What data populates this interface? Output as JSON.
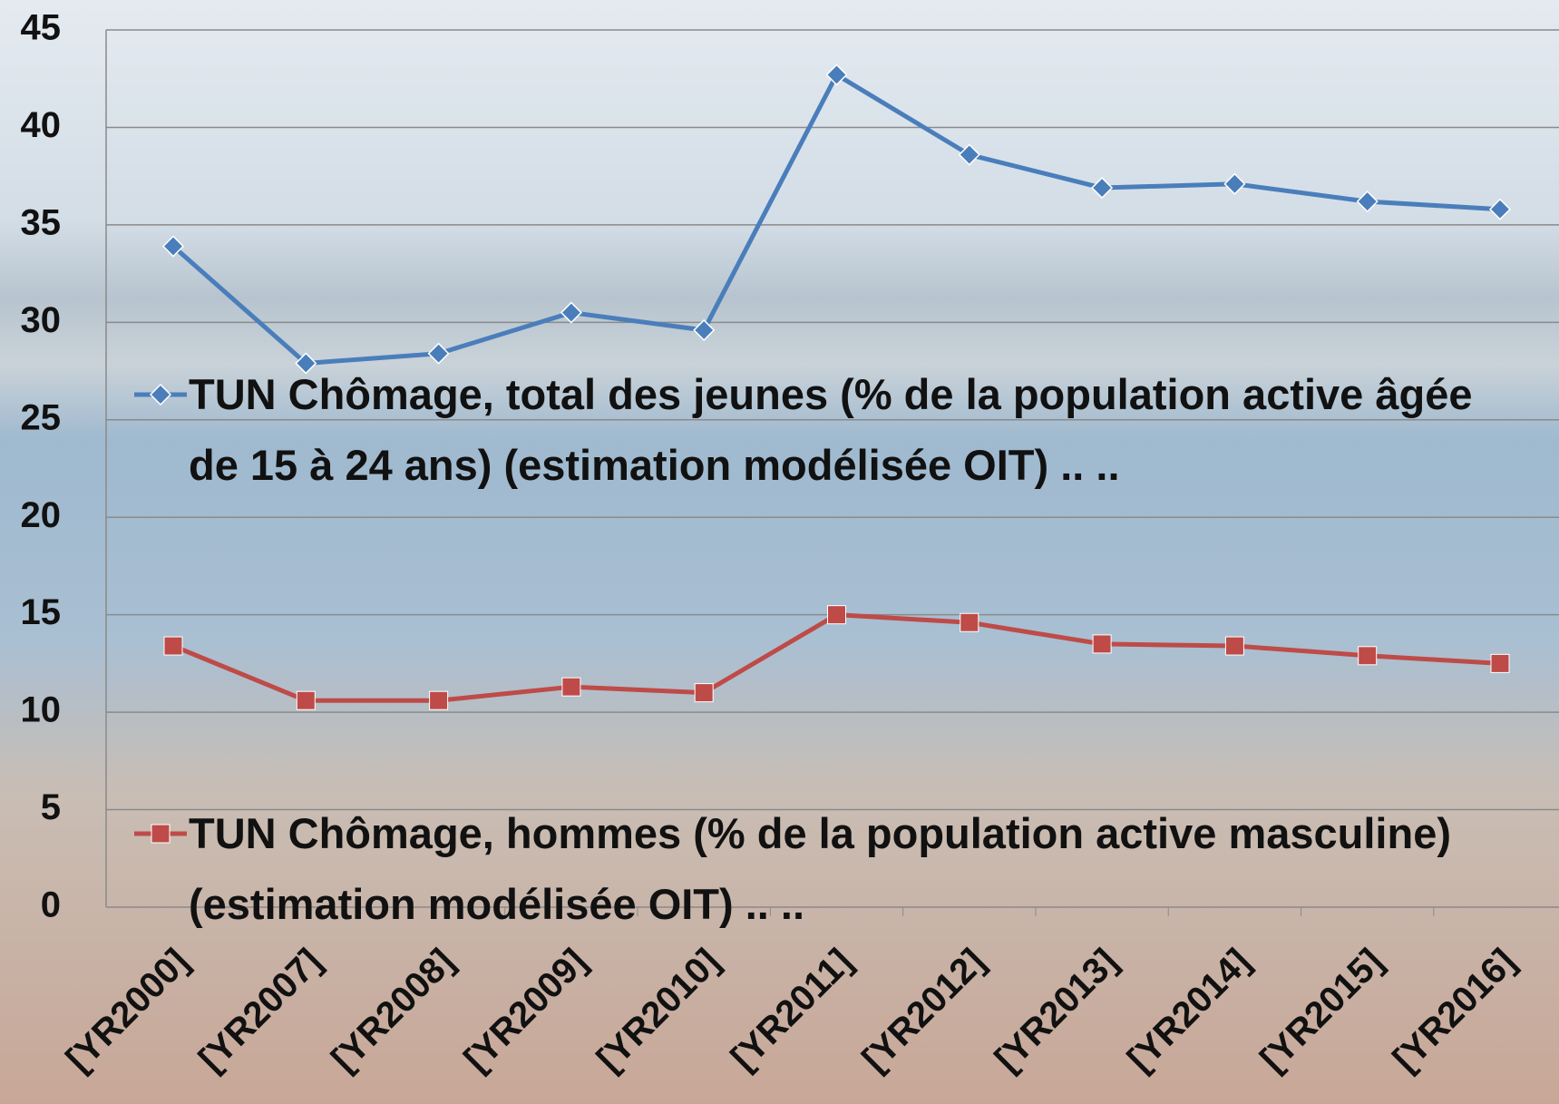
{
  "chart_data": {
    "type": "line",
    "categories": [
      "[YR2000]",
      "[YR2007]",
      "[YR2008]",
      "[YR2009]",
      "[YR2010]",
      "[YR2011]",
      "[YR2012]",
      "[YR2013]",
      "[YR2014]",
      "[YR2015]",
      "[YR2016]"
    ],
    "series": [
      {
        "name": "TUN Chômage, total des jeunes (% de la population active âgée de 15 à 24 ans) (estimation modélisée OIT) .. ..",
        "color": "#4a7ebb",
        "marker": "diamond",
        "values": [
          33.9,
          27.9,
          28.4,
          30.5,
          29.6,
          42.7,
          38.6,
          36.9,
          37.1,
          36.2,
          35.8
        ]
      },
      {
        "name": "TUN Chômage, hommes (% de la population active masculine) (estimation modélisée OIT) .. ..",
        "color": "#be4b48",
        "marker": "square",
        "values": [
          13.4,
          10.6,
          10.6,
          11.3,
          11.0,
          15.0,
          14.6,
          13.5,
          13.4,
          12.9,
          12.5
        ]
      }
    ],
    "ylim": [
      0,
      45
    ],
    "yticks": [
      0,
      5,
      10,
      15,
      20,
      25,
      30,
      35,
      40,
      45
    ],
    "grid": true
  }
}
